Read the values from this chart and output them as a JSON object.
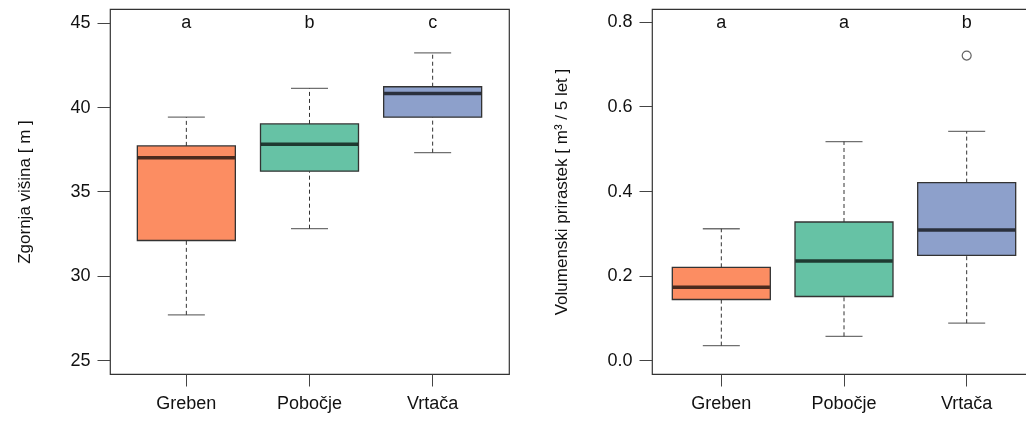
{
  "chart_data": [
    {
      "type": "box",
      "categories": [
        "Greben",
        "Pobočje",
        "Vrtača"
      ],
      "ylabel": "Zgornja višina [ m ]",
      "ylim": [
        24.2,
        45.8
      ],
      "yticks": [
        25,
        30,
        35,
        40,
        45
      ],
      "colors": [
        "#fc8d62",
        "#66c2a5",
        "#8da0cb"
      ],
      "boxes": [
        {
          "low": 27.7,
          "q1": 32.1,
          "median": 37.0,
          "q3": 37.7,
          "high": 39.4
        },
        {
          "low": 32.8,
          "q1": 36.2,
          "median": 37.8,
          "q3": 39.0,
          "high": 41.1
        },
        {
          "low": 37.3,
          "q1": 39.4,
          "median": 40.8,
          "q3": 41.2,
          "high": 43.2
        }
      ],
      "annotations": [
        "a",
        "b",
        "c"
      ]
    },
    {
      "type": "box",
      "categories": [
        "Greben",
        "Pobočje",
        "Vrtača"
      ],
      "ylabel": "Volumenski prirastek [ m³ / 5 let ]",
      "ylim": [
        -0.032,
        0.83
      ],
      "yticks": [
        {
          "value": 0,
          "label": "0.0"
        },
        {
          "value": 0.2,
          "label": "0.2"
        },
        {
          "value": 0.4,
          "label": "0.4"
        },
        {
          "value": 0.6,
          "label": "0.6"
        },
        {
          "value": 0.8,
          "label": "0.8"
        }
      ],
      "colors": [
        "#fc8d62",
        "#66c2a5",
        "#8da0cb"
      ],
      "boxes": [
        {
          "low": 0.035,
          "q1": 0.144,
          "median": 0.173,
          "q3": 0.22,
          "high": 0.311
        },
        {
          "low": 0.057,
          "q1": 0.151,
          "median": 0.235,
          "q3": 0.327,
          "high": 0.517
        },
        {
          "low": 0.088,
          "q1": 0.248,
          "median": 0.308,
          "q3": 0.42,
          "high": 0.541,
          "outliers": [
            0.72
          ]
        }
      ],
      "annotations": [
        "a",
        "a",
        "b"
      ]
    }
  ]
}
